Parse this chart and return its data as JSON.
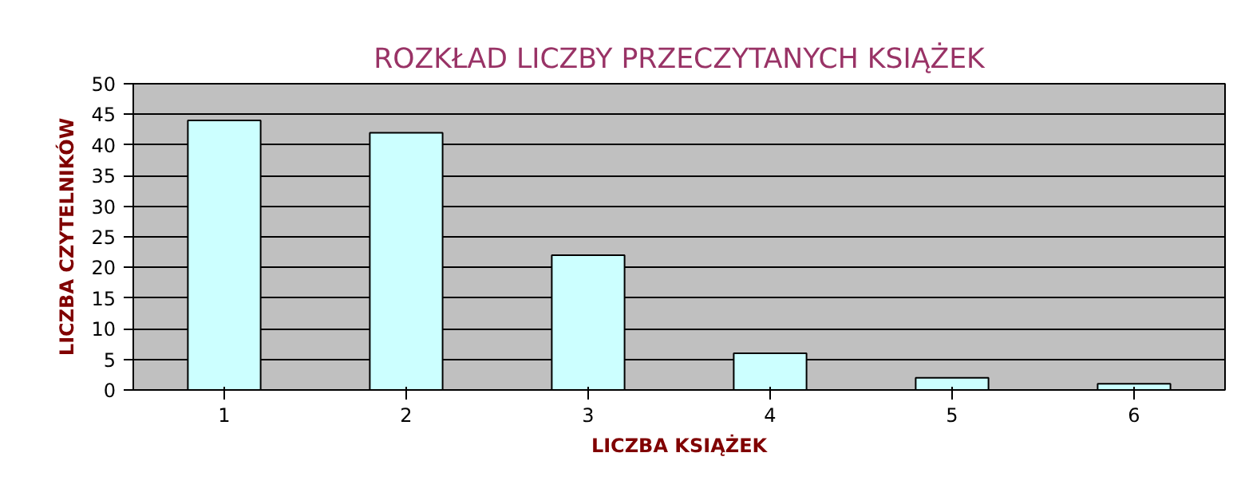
{
  "chart_data": {
    "type": "bar",
    "title": "ROZKŁAD LICZBY PRZECZYTANYCH KSIĄŻEK",
    "xlabel": "LICZBA KSIĄŻEK",
    "ylabel": "LICZBA CZYTELNIKÓW",
    "categories": [
      "1",
      "2",
      "3",
      "4",
      "5",
      "6"
    ],
    "values": [
      44,
      42,
      22,
      6,
      2,
      1
    ],
    "color": "#ccffff",
    "ylim": [
      0,
      50
    ],
    "yticks": [
      0,
      5,
      10,
      15,
      20,
      25,
      30,
      35,
      40,
      45,
      50
    ],
    "grid": "y"
  }
}
